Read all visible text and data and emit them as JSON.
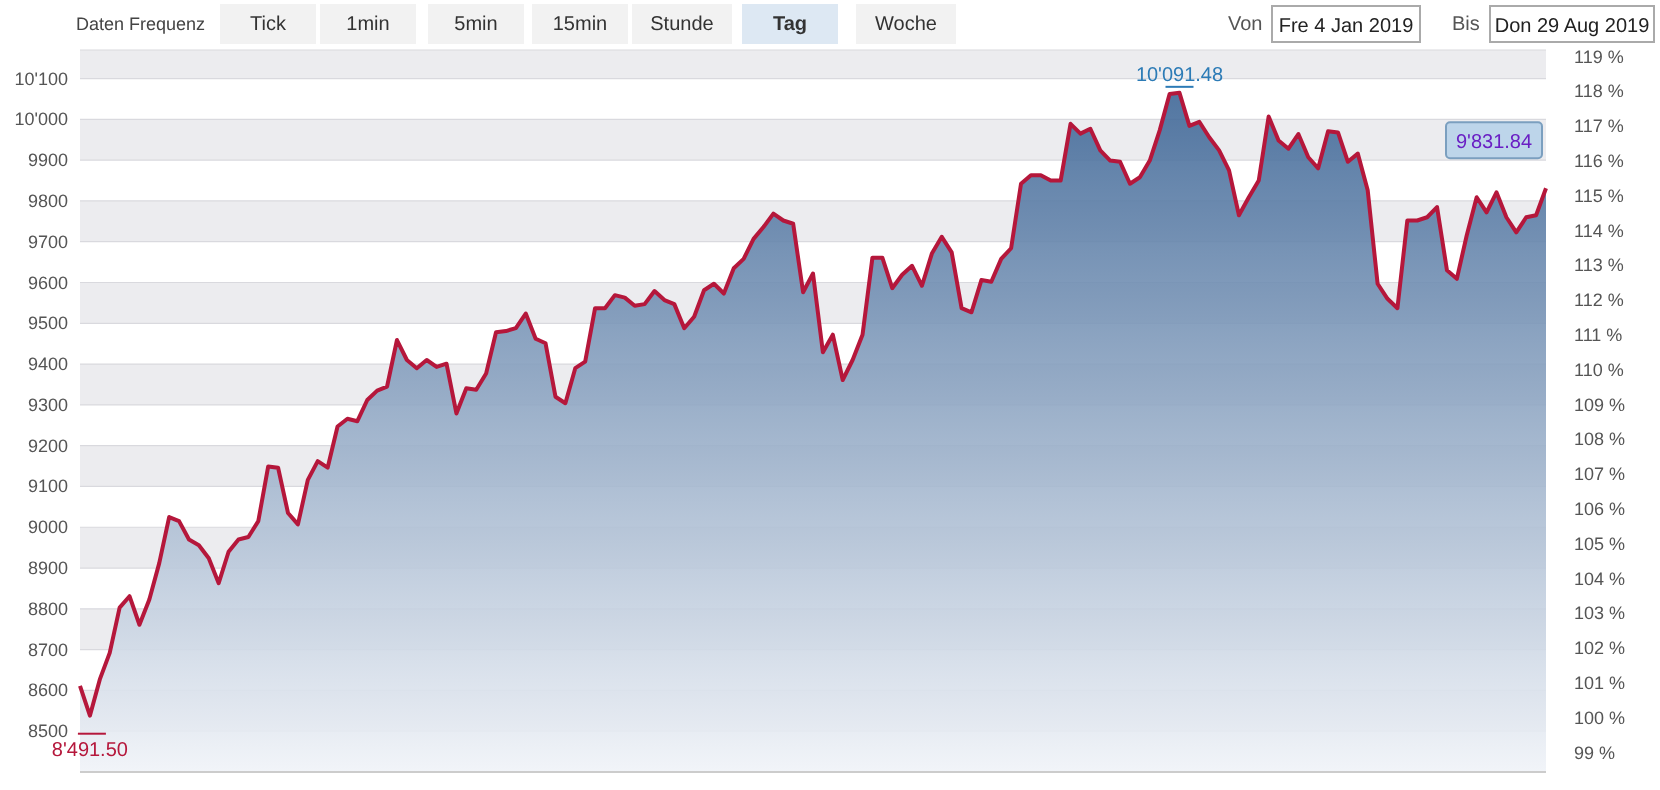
{
  "chart_data": {
    "type": "area",
    "categories": [
      null,
      null,
      null,
      null,
      null,
      null,
      null,
      null,
      null,
      null,
      null,
      null,
      null,
      null,
      null,
      null,
      null,
      null,
      null,
      null,
      null,
      null,
      null,
      null,
      null,
      null,
      null,
      null,
      null,
      null,
      null,
      null,
      null,
      null,
      null,
      null,
      null,
      null,
      null,
      null,
      null,
      null,
      null,
      null,
      null,
      null,
      null,
      null,
      null,
      null,
      null,
      null,
      null,
      null,
      null,
      null,
      null,
      null,
      null,
      null,
      null,
      null,
      null,
      null,
      null,
      null,
      null,
      null,
      null,
      null,
      null,
      null,
      null,
      null,
      null,
      null,
      null,
      null,
      null,
      null,
      null,
      null,
      null,
      null,
      null,
      null,
      null,
      null,
      null,
      null,
      null,
      null,
      null,
      null,
      null,
      null,
      null,
      null,
      null,
      null,
      null,
      null,
      null,
      null,
      null,
      null,
      null,
      null,
      null,
      null,
      null,
      null,
      null,
      null,
      null,
      null,
      null,
      null,
      null,
      null,
      null,
      null,
      null,
      null,
      null,
      null,
      null,
      null,
      null,
      null,
      null,
      null,
      null,
      null,
      null,
      null,
      null,
      null,
      null,
      null,
      null,
      null,
      null,
      null,
      null,
      null,
      null,
      null,
      null
    ],
    "series": [
      {
        "color": "#b5173b",
        "values": [
          8611,
          8538,
          8627,
          8692,
          8803,
          8831,
          8761,
          8823,
          8912,
          9025,
          9015,
          8970,
          8956,
          8924,
          8863,
          8940,
          8970,
          8976,
          9015,
          9149,
          9146,
          9035,
          9007,
          9116,
          9162,
          9146,
          9247,
          9266,
          9260,
          9312,
          9335,
          9345,
          9459,
          9410,
          9390,
          9410,
          9393,
          9401,
          9279,
          9341,
          9337,
          9377,
          9478,
          9481,
          9488,
          9524,
          9462,
          9451,
          9320,
          9304,
          9390,
          9406,
          9537,
          9537,
          9569,
          9563,
          9543,
          9547,
          9579,
          9557,
          9547,
          9488,
          9516,
          9581,
          9597,
          9573,
          9635,
          9658,
          9707,
          9736,
          9769,
          9752,
          9744,
          9576,
          9622,
          9429,
          9472,
          9361,
          9410,
          9472,
          9661,
          9661,
          9586,
          9619,
          9641,
          9592,
          9671,
          9712,
          9674,
          9537,
          9527,
          9606,
          9602,
          9658,
          9684,
          9842,
          9863,
          9863,
          9850,
          9850,
          9989,
          9965,
          9977,
          9924,
          9899,
          9896,
          9842,
          9858,
          9899,
          9973,
          10062,
          10065,
          9984,
          9994,
          9956,
          9924,
          9875,
          9765,
          9809,
          9850,
          10007,
          9948,
          9928,
          9964,
          9907,
          9880,
          9971,
          9968,
          9896,
          9916,
          9826,
          9597,
          9560,
          9537,
          9752,
          9752,
          9760,
          9785,
          9630,
          9609,
          9716,
          9809,
          9772,
          9821,
          9760,
          9723,
          9760,
          9765,
          9831
        ]
      }
    ],
    "ylim": [
      8400,
      10170
    ],
    "yticks": [
      8500,
      8600,
      8700,
      8800,
      8900,
      9000,
      9100,
      9200,
      9300,
      9400,
      9500,
      9600,
      9700,
      9800,
      9900,
      {
        "value": 10000,
        "label": "10'000"
      },
      {
        "value": 10100,
        "label": "10'100"
      }
    ],
    "y2lim": [
      98.44,
      119.19
    ],
    "y2ticks": [
      {
        "value": 99,
        "label": "99 %"
      },
      {
        "value": 100,
        "label": "100 %"
      },
      {
        "value": 101,
        "label": "101 %"
      },
      {
        "value": 102,
        "label": "102 %"
      },
      {
        "value": 103,
        "label": "103 %"
      },
      {
        "value": 104,
        "label": "104 %"
      },
      {
        "value": 105,
        "label": "105 %"
      },
      {
        "value": 106,
        "label": "106 %"
      },
      {
        "value": 107,
        "label": "107 %"
      },
      {
        "value": 108,
        "label": "108 %"
      },
      {
        "value": 109,
        "label": "109 %"
      },
      {
        "value": 110,
        "label": "110 %"
      },
      {
        "value": 111,
        "label": "111 %"
      },
      {
        "value": 112,
        "label": "112 %"
      },
      {
        "value": 113,
        "label": "113 %"
      },
      {
        "value": 114,
        "label": "114 %"
      },
      {
        "value": 115,
        "label": "115 %"
      },
      {
        "value": 116,
        "label": "116 %"
      },
      {
        "value": 117,
        "label": "117 %"
      },
      {
        "value": 118,
        "label": "118 %"
      },
      {
        "value": 119,
        "label": "119 %"
      }
    ],
    "grid": "y",
    "marker": "none",
    "tick_labels": "y",
    "annotations": [
      "10'091.48",
      "8'491.50",
      "9'831.84",
      "Daten Frequenz",
      "Tick",
      "1min",
      "5min",
      "15min",
      "Stunde",
      "Tag",
      "Woche",
      "Von",
      "Fre 4 Jan 2019",
      "Bis",
      "Don 29 Aug 2019"
    ]
  }
}
